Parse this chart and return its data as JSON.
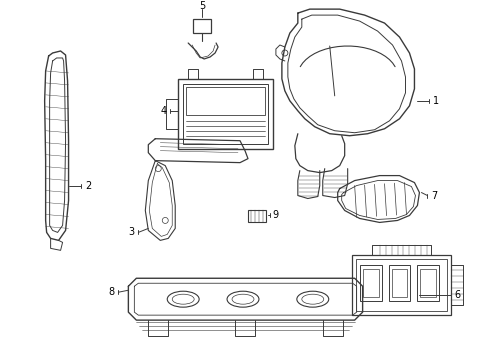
{
  "background_color": "#ffffff",
  "line_color": "#3a3a3a",
  "text_color": "#000000",
  "fig_width": 4.9,
  "fig_height": 3.6,
  "dpi": 100
}
